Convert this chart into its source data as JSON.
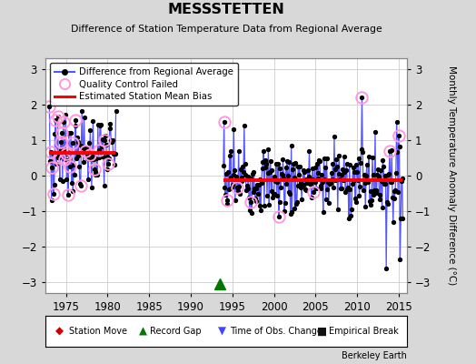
{
  "title": "MESSSTETTEN",
  "subtitle": "Difference of Station Temperature Data from Regional Average",
  "ylabel_right": "Monthly Temperature Anomaly Difference (°C)",
  "xlim": [
    1972.5,
    2016.0
  ],
  "ylim": [
    -3.3,
    3.3
  ],
  "yticks": [
    -3,
    -2,
    -1,
    0,
    1,
    2,
    3
  ],
  "xticks": [
    1975,
    1980,
    1985,
    1990,
    1995,
    2000,
    2005,
    2010,
    2015
  ],
  "seg1_start": 1973.0,
  "seg1_end": 1980.92,
  "seg2_start": 1993.92,
  "seg2_end": 2015.5,
  "bias1": 0.65,
  "bias2": -0.12,
  "gap_marker_x": 1993.5,
  "gap_marker_y": -3.05,
  "bg_color": "#d8d8d8",
  "plot_bg": "#ffffff",
  "line_color": "#5555ff",
  "dot_color": "#000000",
  "qc_color": "#ff99dd",
  "bias_color": "#ff0000",
  "gap_color": "#007700",
  "footer": "Berkeley Earth",
  "seed": 7
}
